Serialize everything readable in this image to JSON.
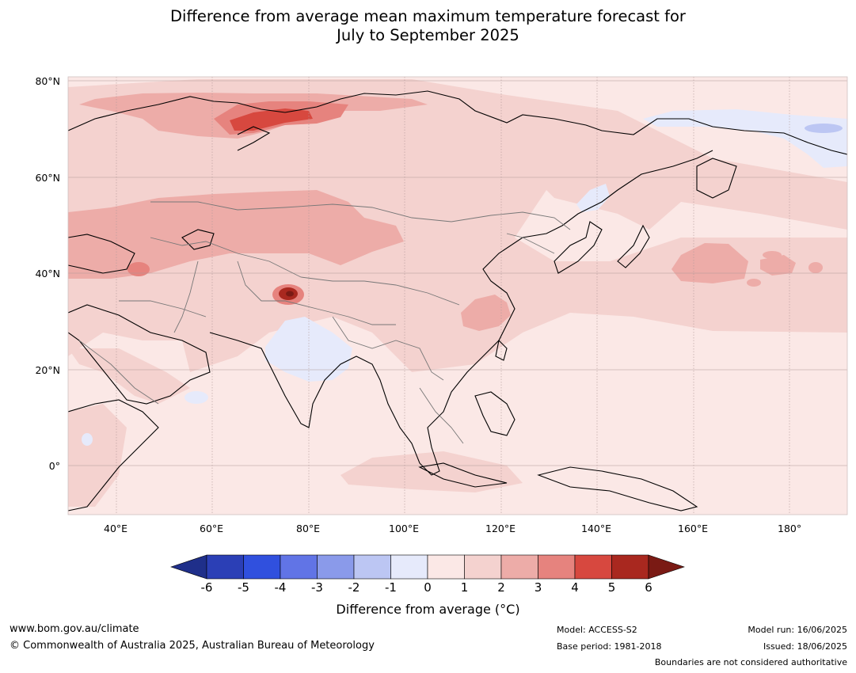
{
  "title_line1": "Difference from average mean maximum temperature forecast for",
  "title_line2": "July to September 2025",
  "map": {
    "lat_labels": [
      "80°N",
      "60°N",
      "40°N",
      "20°N",
      "0°"
    ],
    "lon_labels": [
      "40°E",
      "60°E",
      "80°E",
      "100°E",
      "120°E",
      "140°E",
      "160°E",
      "180°"
    ],
    "region": "Asia"
  },
  "colorbar": {
    "ticks": [
      "-6",
      "-5",
      "-4",
      "-3",
      "-2",
      "-1",
      "0",
      "1",
      "2",
      "3",
      "4",
      "5",
      "6"
    ],
    "colors": [
      "#1f2f8a",
      "#2b3fb6",
      "#3050de",
      "#6174e6",
      "#8a9aea",
      "#bcc6f3",
      "#e6eafb",
      "#fbe8e6",
      "#f4d2cf",
      "#edaca8",
      "#e6837e",
      "#d7483f",
      "#a9281f",
      "#7a1a14"
    ],
    "label": "Difference from average (°C)"
  },
  "footer": {
    "website": "www.bom.gov.au/climate",
    "copyright": "© Commonwealth of Australia 2025, Australian Bureau of Meteorology",
    "model": "Model: ACCESS-S2",
    "base_period": "Base period: 1981-2018",
    "model_run": "Model run: 16/06/2025",
    "issued": "Issued: 18/06/2025",
    "disclaimer": "Boundaries are not considered authoritative"
  }
}
